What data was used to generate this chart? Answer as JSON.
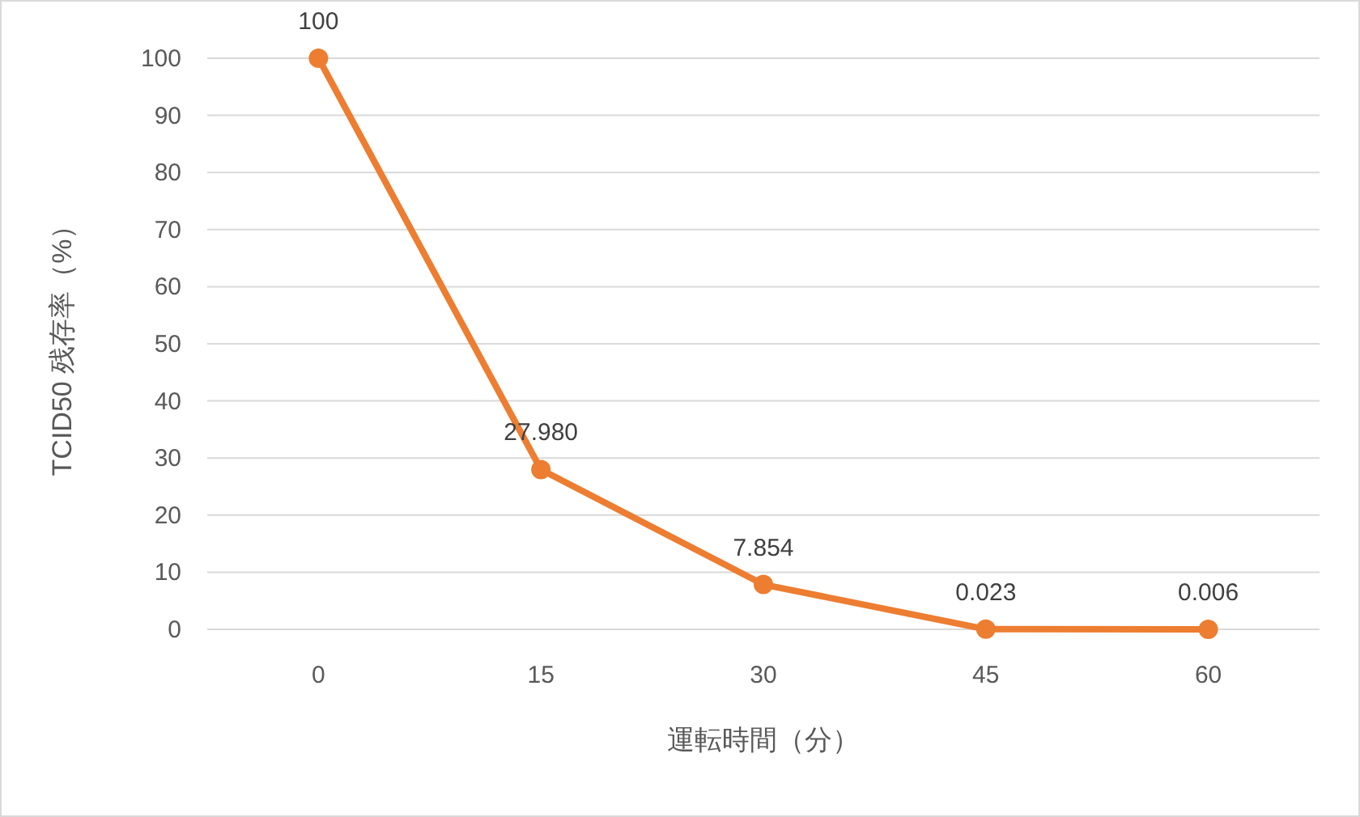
{
  "chart_data": {
    "type": "line",
    "xlabel": "運転時間（分）",
    "ylabel": "TCID50 残存率（%）",
    "categories": [
      "0",
      "15",
      "30",
      "45",
      "60"
    ],
    "series": [
      {
        "color": "#ed7d31",
        "values": [
          100,
          27.98,
          7.854,
          0.023,
          0.006
        ],
        "value_labels": [
          "100",
          "27.980",
          "7.854",
          "0.023",
          "0.006"
        ]
      }
    ],
    "ylim": [
      0,
      100
    ],
    "yticks": [
      0,
      10,
      20,
      30,
      40,
      50,
      60,
      70,
      80,
      90,
      100
    ],
    "grid": "y",
    "marker": "circle",
    "line_style": "solid"
  }
}
